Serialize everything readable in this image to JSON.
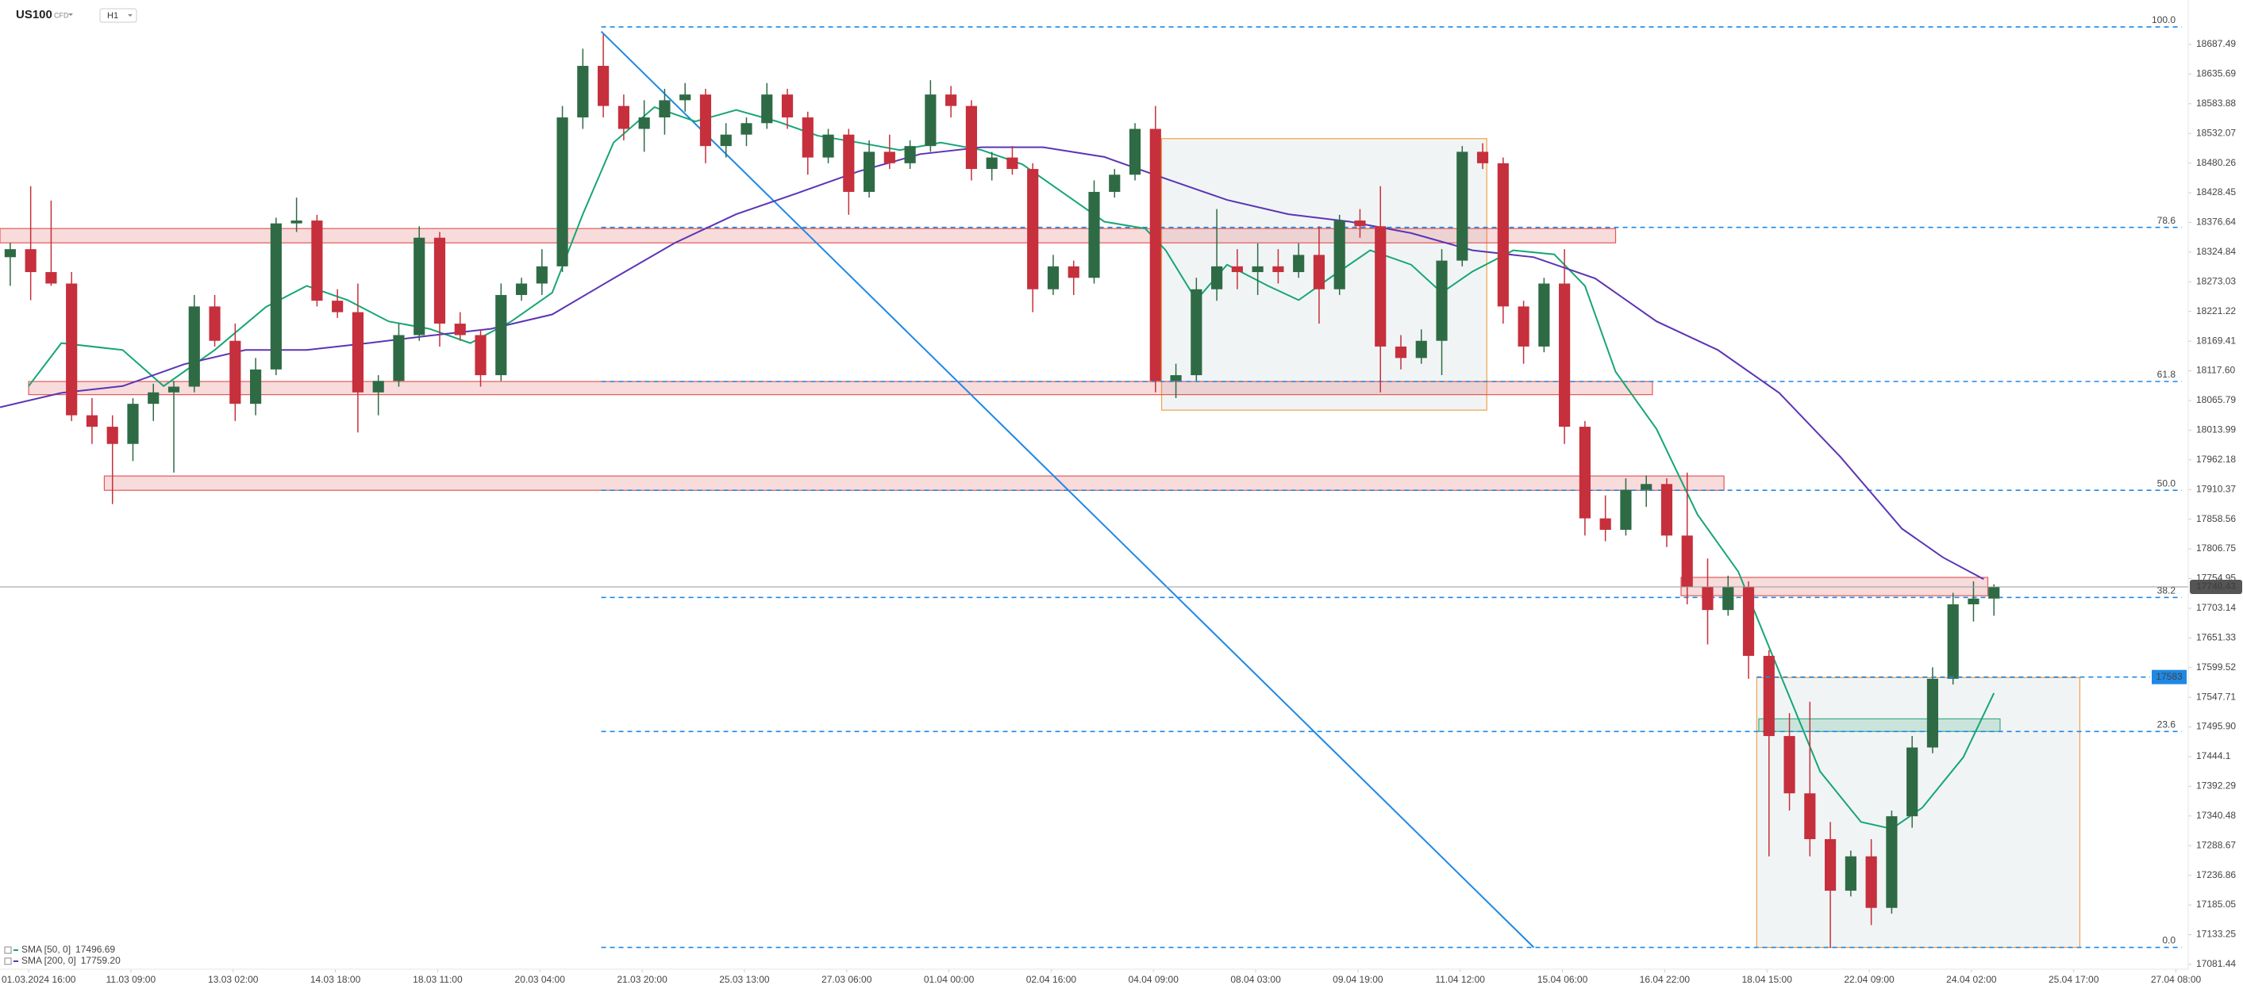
{
  "chart_data": {
    "type": "candlestick",
    "symbol": "US100",
    "symbol_type": "CFD",
    "timeframe": "H1",
    "up_color": "#2e6b45",
    "down_color": "#c62f3c",
    "xlim": [
      0,
      107
    ],
    "ylim": [
      17073,
      18765
    ],
    "yticks": [
      18687.49,
      18635.69,
      18583.88,
      18532.07,
      18480.26,
      18428.45,
      18376.64,
      18324.84,
      18273.03,
      18221.22,
      18169.41,
      {
        "value": 18117.6,
        "label": "18117.60"
      },
      18065.79,
      18013.99,
      17962.18,
      17910.37,
      17858.56,
      17806.75,
      17754.95,
      17703.14,
      17651.33,
      17599.52,
      17547.71,
      {
        "value": 17495.9,
        "label": "17495.90"
      },
      17444.1,
      17392.29,
      17340.48,
      17288.67,
      17236.86,
      17185.05,
      17133.25,
      17081.44
    ],
    "xticks": [
      {
        "value": 1.4,
        "label": "01.03.2024 16:00"
      },
      {
        "value": 6.4,
        "label": "11.03 09:00"
      },
      {
        "value": 11.4,
        "label": "13.03 02:00"
      },
      {
        "value": 16.4,
        "label": "14.03 18:00"
      },
      {
        "value": 21.4,
        "label": "18.03 11:00"
      },
      {
        "value": 26.4,
        "label": "20.03 04:00"
      },
      {
        "value": 31.4,
        "label": "21.03 20:00"
      },
      {
        "value": 36.4,
        "label": "25.03 13:00"
      },
      {
        "value": 41.4,
        "label": "27.03 06:00"
      },
      {
        "value": 46.4,
        "label": "01.04 00:00"
      },
      {
        "value": 51.4,
        "label": "02.04 16:00"
      },
      {
        "value": 56.4,
        "label": "04.04 09:00"
      },
      {
        "value": 61.4,
        "label": "08.04 03:00"
      },
      {
        "value": 66.4,
        "label": "09.04 19:00"
      },
      {
        "value": 71.4,
        "label": "11.04 12:00"
      },
      {
        "value": 76.4,
        "label": "15.04 06:00"
      },
      {
        "value": 81.4,
        "label": "16.04 22:00"
      },
      {
        "value": 86.4,
        "label": "18.04 15:00"
      },
      {
        "value": 91.4,
        "label": "22.04 09:00"
      },
      {
        "value": 96.4,
        "label": "24.04 02:00"
      },
      {
        "value": 101.4,
        "label": "25.04 17:00"
      },
      {
        "value": 106.4,
        "label": "27.04 08:00"
      }
    ],
    "candles": [
      [
        18316,
        18341,
        18266,
        18330
      ],
      [
        18330,
        18440,
        18241,
        18290
      ],
      [
        18290,
        18415,
        18266,
        18270
      ],
      [
        18270,
        18290,
        18030,
        18040
      ],
      [
        18040,
        18070,
        17990,
        18020
      ],
      [
        18020,
        18040,
        17885,
        17990
      ],
      [
        17990,
        18070,
        17960,
        18060
      ],
      [
        18060,
        18095,
        18030,
        18080
      ],
      [
        18080,
        18100,
        17940,
        18090
      ],
      [
        18090,
        18250,
        18080,
        18230
      ],
      [
        18230,
        18250,
        18160,
        18170
      ],
      [
        18170,
        18200,
        18030,
        18060
      ],
      [
        18060,
        18140,
        18040,
        18120
      ],
      [
        18120,
        18385,
        18110,
        18375
      ],
      [
        18375,
        18420,
        18360,
        18380
      ],
      [
        18380,
        18390,
        18230,
        18240
      ],
      [
        18240,
        18260,
        18210,
        18220
      ],
      [
        18220,
        18270,
        18010,
        18080
      ],
      [
        18080,
        18110,
        18040,
        18100
      ],
      [
        18100,
        18200,
        18090,
        18180
      ],
      [
        18180,
        18370,
        18170,
        18350
      ],
      [
        18350,
        18360,
        18160,
        18200
      ],
      [
        18200,
        18220,
        18170,
        18180
      ],
      [
        18180,
        18190,
        18090,
        18110
      ],
      [
        18110,
        18270,
        18100,
        18250
      ],
      [
        18250,
        18280,
        18240,
        18270
      ],
      [
        18270,
        18330,
        18250,
        18300
      ],
      [
        18300,
        18580,
        18290,
        18560
      ],
      [
        18560,
        18680,
        18540,
        18650
      ],
      [
        18650,
        18705,
        18560,
        18580
      ],
      [
        18580,
        18600,
        18520,
        18540
      ],
      [
        18540,
        18590,
        18500,
        18560
      ],
      [
        18560,
        18610,
        18530,
        18590
      ],
      [
        18590,
        18620,
        18570,
        18600
      ],
      [
        18600,
        18610,
        18480,
        18510
      ],
      [
        18510,
        18550,
        18490,
        18530
      ],
      [
        18530,
        18560,
        18510,
        18550
      ],
      [
        18550,
        18620,
        18540,
        18600
      ],
      [
        18600,
        18610,
        18540,
        18560
      ],
      [
        18560,
        18570,
        18460,
        18490
      ],
      [
        18490,
        18540,
        18480,
        18530
      ],
      [
        18530,
        18540,
        18390,
        18430
      ],
      [
        18430,
        18520,
        18420,
        18500
      ],
      [
        18500,
        18530,
        18470,
        18480
      ],
      [
        18480,
        18520,
        18470,
        18510
      ],
      [
        18510,
        18625,
        18500,
        18600
      ],
      [
        18600,
        18615,
        18560,
        18580
      ],
      [
        18580,
        18590,
        18450,
        18470
      ],
      [
        18470,
        18500,
        18450,
        18490
      ],
      [
        18490,
        18510,
        18460,
        18470
      ],
      [
        18470,
        18480,
        18220,
        18260
      ],
      [
        18260,
        18320,
        18250,
        18300
      ],
      [
        18300,
        18310,
        18250,
        18280
      ],
      [
        18280,
        18450,
        18270,
        18430
      ],
      [
        18430,
        18470,
        18420,
        18460
      ],
      [
        18460,
        18550,
        18450,
        18540
      ],
      [
        18540,
        18580,
        18080,
        18100
      ],
      [
        18100,
        18130,
        18070,
        18110
      ],
      [
        18110,
        18280,
        18100,
        18260
      ],
      [
        18260,
        18400,
        18240,
        18300
      ],
      [
        18300,
        18330,
        18260,
        18290
      ],
      [
        18290,
        18340,
        18250,
        18300
      ],
      [
        18300,
        18330,
        18270,
        18290
      ],
      [
        18290,
        18340,
        18280,
        18320
      ],
      [
        18320,
        18370,
        18200,
        18260
      ],
      [
        18260,
        18390,
        18250,
        18380
      ],
      [
        18380,
        18400,
        18350,
        18370
      ],
      [
        18370,
        18440,
        18080,
        18160
      ],
      [
        18160,
        18180,
        18120,
        18140
      ],
      [
        18140,
        18190,
        18130,
        18170
      ],
      [
        18170,
        18330,
        18110,
        18310
      ],
      [
        18310,
        18510,
        18300,
        18500
      ],
      [
        18500,
        18515,
        18470,
        18480
      ],
      [
        18480,
        18490,
        18200,
        18230
      ],
      [
        18230,
        18240,
        18130,
        18160
      ],
      [
        18160,
        18280,
        18150,
        18270
      ],
      [
        18270,
        18330,
        17990,
        18020
      ],
      [
        18020,
        18030,
        17830,
        17860
      ],
      [
        17860,
        17900,
        17820,
        17840
      ],
      [
        17840,
        17930,
        17830,
        17910
      ],
      [
        17910,
        17935,
        17880,
        17920
      ],
      [
        17920,
        17930,
        17810,
        17830
      ],
      [
        17830,
        17940,
        17710,
        17740
      ],
      [
        17740,
        17790,
        17640,
        17700
      ],
      [
        17700,
        17760,
        17690,
        17740
      ],
      [
        17740,
        17750,
        17580,
        17620
      ],
      [
        17620,
        17630,
        17270,
        17480
      ],
      [
        17480,
        17520,
        17350,
        17380
      ],
      [
        17380,
        17540,
        17270,
        17300
      ],
      [
        17300,
        17330,
        17110,
        17210
      ],
      [
        17210,
        17280,
        17200,
        17270
      ],
      [
        17270,
        17300,
        17150,
        17180
      ],
      [
        17180,
        17350,
        17170,
        17340
      ],
      [
        17340,
        17480,
        17320,
        17460
      ],
      [
        17460,
        17600,
        17450,
        17580
      ],
      [
        17580,
        17730,
        17570,
        17710
      ],
      [
        17710,
        17750,
        17680,
        17720
      ],
      [
        17720,
        17745,
        17690,
        17740
      ]
    ],
    "sma": [
      {
        "name": "SMA [50, 0]",
        "color": "#17a673",
        "last": 17496.69,
        "x": [
          1.4,
          3,
          6,
          8,
          10.5,
          13,
          15,
          17,
          19,
          21,
          23,
          25,
          27,
          28.5,
          30,
          32,
          34,
          36,
          38,
          40,
          42,
          44,
          46,
          48,
          50,
          52,
          54,
          56,
          57,
          58.5,
          60,
          62,
          63.5,
          65,
          67,
          69,
          70.5,
          72,
          74,
          76,
          77.5,
          79,
          81,
          83,
          85,
          87,
          89,
          91,
          92.5,
          94,
          96,
          97.5
        ],
        "values": [
          18091,
          18166,
          18154,
          18091,
          18154,
          18229,
          18266,
          18241,
          18204,
          18191,
          18166,
          18204,
          18254,
          18391,
          18516,
          18578,
          18553,
          18573,
          18553,
          18528,
          18516,
          18503,
          18516,
          18503,
          18478,
          18428,
          18378,
          18366,
          18328,
          18241,
          18303,
          18266,
          18241,
          18279,
          18328,
          18303,
          18254,
          18291,
          18328,
          18321,
          18266,
          18116,
          18016,
          17867,
          17767,
          17592,
          17418,
          17330,
          17318,
          17355,
          17443,
          17555
        ]
      },
      {
        "name": "SMA [200, 0]",
        "color": "#5b35b5",
        "last": {
          "value": 17759.2,
          "label": "17759.20"
        },
        "x": [
          0,
          3,
          6,
          9,
          12,
          15,
          18,
          21,
          24,
          27,
          30,
          33,
          36,
          39,
          42,
          45,
          48,
          51,
          54,
          57,
          60,
          63,
          66,
          69,
          72,
          75,
          78,
          81,
          84,
          87,
          90,
          93,
          95,
          97
        ],
        "values": [
          18054,
          18079,
          18091,
          18129,
          18154,
          18154,
          18166,
          18179,
          18191,
          18216,
          18279,
          18341,
          18391,
          18428,
          18466,
          18496,
          18508,
          18508,
          18491,
          18453,
          18416,
          18391,
          18378,
          18358,
          18328,
          18316,
          18279,
          18204,
          18154,
          18079,
          17967,
          17842,
          17792,
          17754
        ]
      }
    ],
    "trendline": {
      "color": "#1e88e5",
      "x": [
        29.4,
        75.0
      ],
      "values": [
        18710,
        17111
      ]
    },
    "fib_color": "#1e88e5",
    "fib_levels": [
      {
        "label": "100.0",
        "price": 18718
      },
      {
        "label": "78.6",
        "price": 18368
      },
      {
        "label": "61.8",
        "price": 18099
      },
      {
        "label": "50.0",
        "price": 17909
      },
      {
        "label": "38.2",
        "price": 17722
      },
      {
        "label": "23.6",
        "price": 17488
      },
      {
        "label": "0.0",
        "price": 17111
      }
    ],
    "zones": [
      {
        "x": [
          0,
          79.0
        ],
        "y": [
          18341,
          18366
        ],
        "color": "#e05a5a"
      },
      {
        "x": [
          1.4,
          80.8
        ],
        "y": [
          18076,
          18099
        ],
        "color": "#e05a5a"
      },
      {
        "x": [
          5.1,
          84.3
        ],
        "y": [
          17909,
          17934
        ],
        "color": "#e05a5a"
      },
      {
        "x": [
          82.2,
          97.2
        ],
        "y": [
          17725,
          17757
        ],
        "color": "#e05a5a"
      },
      {
        "x": [
          86.0,
          97.8
        ],
        "y": [
          17488,
          17510
        ],
        "color": "#3fae82"
      }
    ],
    "boxes": [
      {
        "x": [
          56.8,
          72.7
        ],
        "y": [
          18049,
          18523
        ],
        "color": "#f0a04b"
      },
      {
        "x": [
          85.9,
          101.7
        ],
        "y": [
          17111,
          17582
        ],
        "color": "#f0a04b"
      }
    ],
    "last_price": 17740.43,
    "order_price": 17583
  }
}
